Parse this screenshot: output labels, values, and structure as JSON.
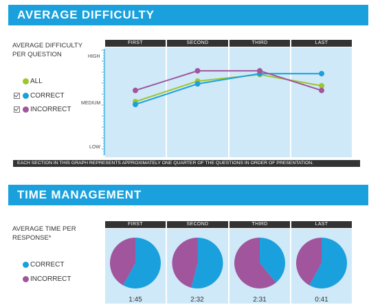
{
  "difficulty": {
    "banner": "AVERAGE DIFFICULTY",
    "label": "AVERAGE DIFFICULTY PER QUESTION",
    "legend": [
      {
        "label": "ALL",
        "color": "#9cc62b",
        "checkbox": false
      },
      {
        "label": "CORRECT",
        "color": "#1aa0dd",
        "checkbox": true
      },
      {
        "label": "INCORRECT",
        "color": "#a0559c",
        "checkbox": true
      }
    ],
    "footer": "EACH SECTION IN THIS GRAPH REPRESENTS APPROXIMATELY ONE QUARTER OF THE QUESTIONS IN ORDER OF PRESENTATION."
  },
  "time": {
    "banner": "TIME MANAGEMENT",
    "label": "AVERAGE TIME PER RESPONSE*",
    "legend": [
      {
        "label": "CORRECT",
        "color": "#1aa0dd"
      },
      {
        "label": "INCORRECT",
        "color": "#a0559c"
      }
    ]
  },
  "chart_data": [
    {
      "type": "line",
      "categories": [
        "FIRST",
        "SECOND",
        "THIRD",
        "LAST"
      ],
      "y_ticks": [
        "HIGH",
        "MEDIUM",
        "LOW"
      ],
      "ylim": [
        0,
        100
      ],
      "series": [
        {
          "name": "ALL",
          "color": "#9cc62b",
          "values": [
            50,
            72,
            79,
            67
          ]
        },
        {
          "name": "CORRECT",
          "color": "#1aa0dd",
          "values": [
            47,
            69,
            80,
            80
          ]
        },
        {
          "name": "INCORRECT",
          "color": "#a0559c",
          "values": [
            62,
            83,
            83,
            62
          ]
        }
      ]
    },
    {
      "type": "pie",
      "categories": [
        "FIRST",
        "SECOND",
        "THIRD",
        "LAST"
      ],
      "series": [
        {
          "name": "CORRECT",
          "color": "#1aa0dd",
          "values": [
            0.58,
            0.54,
            0.39,
            0.58
          ]
        },
        {
          "name": "INCORRECT",
          "color": "#a0559c",
          "values": [
            0.42,
            0.46,
            0.61,
            0.42
          ]
        }
      ],
      "times": [
        "1:45",
        "2:32",
        "2:31",
        "0:41"
      ]
    }
  ]
}
